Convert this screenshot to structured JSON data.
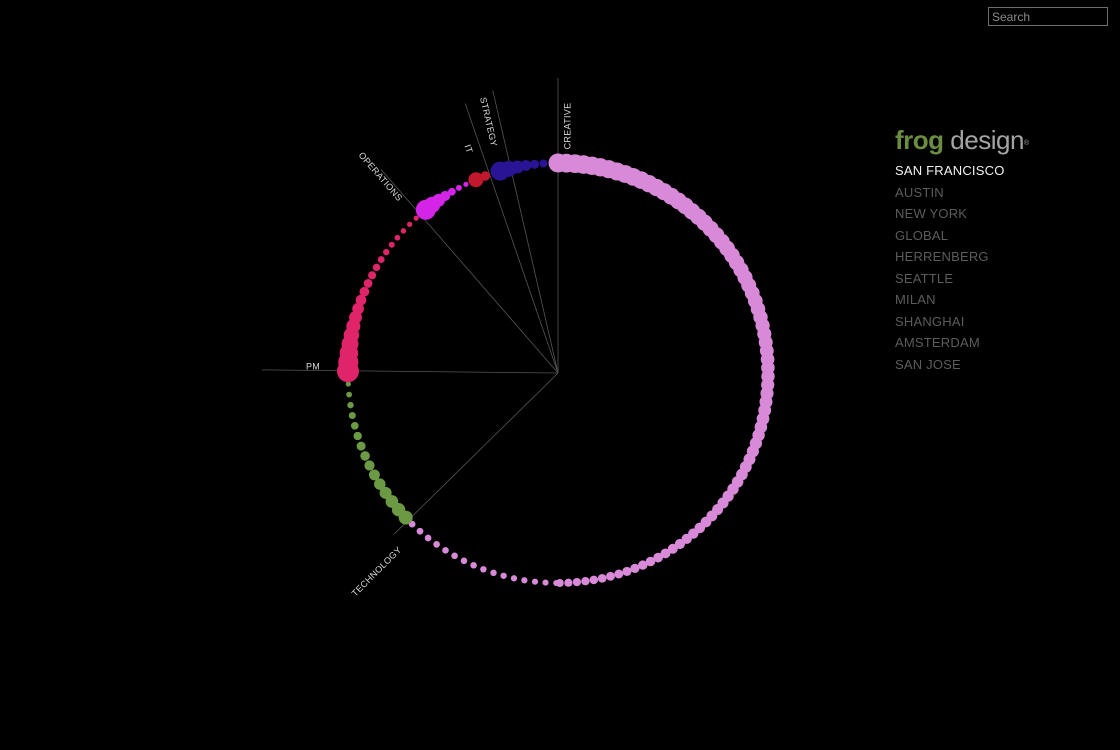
{
  "search": {
    "placeholder": "Search"
  },
  "brand": {
    "frog": "frog",
    "design": "design",
    "mark": "®"
  },
  "offices": [
    {
      "label": "SAN FRANCISCO",
      "selected": true
    },
    {
      "label": "AUSTIN",
      "selected": false
    },
    {
      "label": "NEW YORK",
      "selected": false
    },
    {
      "label": "GLOBAL",
      "selected": false
    },
    {
      "label": "HERRENBERG",
      "selected": false
    },
    {
      "label": "SEATTLE",
      "selected": false
    },
    {
      "label": "MILAN",
      "selected": false
    },
    {
      "label": "SHANGHAI",
      "selected": false
    },
    {
      "label": "AMSTERDAM",
      "selected": false
    },
    {
      "label": "SAN JOSE",
      "selected": false
    }
  ],
  "colors": {
    "background": "#000000",
    "axis_line": "#555555",
    "creative": "#d88ad8",
    "strategy": "#2a1496",
    "it": "#c2182e",
    "operations": "#d424e8",
    "pm": "#e0246a",
    "technology": "#6c9a44",
    "office_selected": "#f2f2f2",
    "office_unselected": "#5c5c5c",
    "brand_green": "#6c8c42"
  },
  "disciplines": [
    {
      "name": "CREATIVE",
      "color_key": "creative"
    },
    {
      "name": "STRATEGY",
      "color_key": "strategy"
    },
    {
      "name": "IT",
      "color_key": "it"
    },
    {
      "name": "OPERATIONS",
      "color_key": "operations"
    },
    {
      "name": "PM",
      "color_key": "pm"
    },
    {
      "name": "TECHNOLOGY",
      "color_key": "technology"
    }
  ]
}
